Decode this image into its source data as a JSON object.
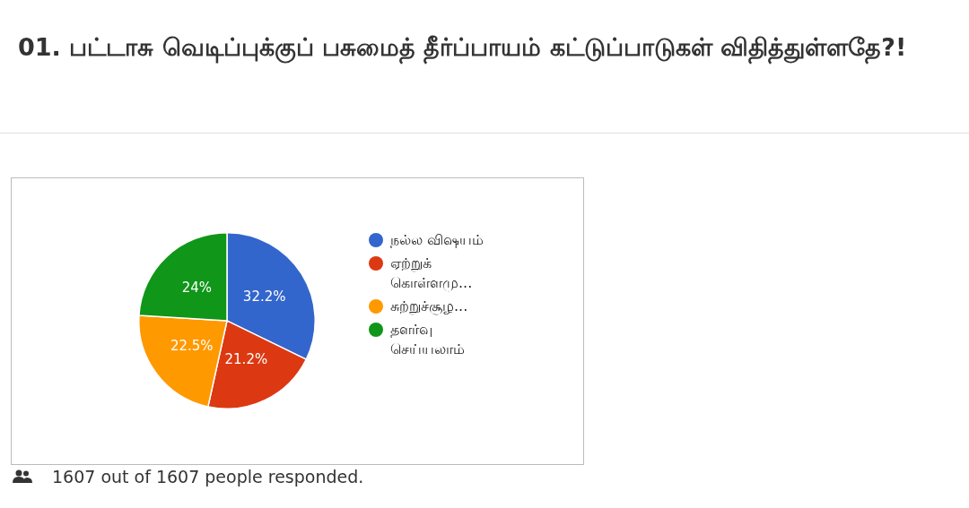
{
  "chart_data": {
    "type": "pie",
    "title": "01. பட்டாசு வெடிப்புக்குப் பசுமைத் தீர்ப்பாயம் கட்டுப்பாடுகள் விதித்துள்ளதே?!",
    "categories": [
      "நல்ல விஷயம்",
      "ஏற்றுக் கொள்ளமு...",
      "சுற்றுச்சூழ...",
      "தளர்வு செய்யலாம்"
    ],
    "values": [
      32.2,
      21.2,
      22.5,
      24
    ],
    "value_labels": [
      "32.2%",
      "21.2%",
      "22.5%",
      "24%"
    ],
    "colors": [
      "#3366cc",
      "#dc3912",
      "#ff9900",
      "#109618"
    ],
    "legend": "right",
    "annotations": [
      "1607 out of 1607 people responded."
    ]
  }
}
